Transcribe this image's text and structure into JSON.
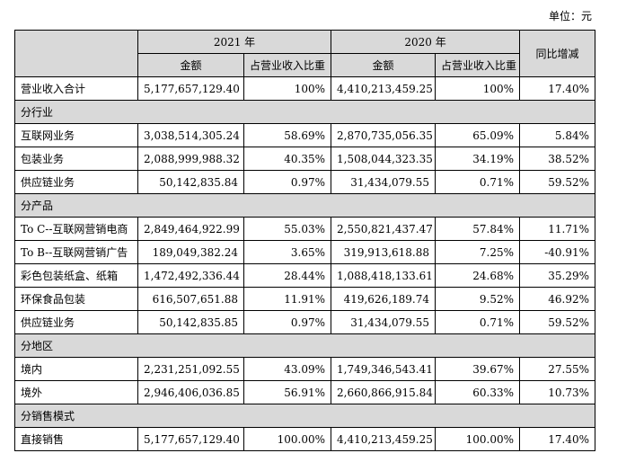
{
  "unit_label": "单位：元",
  "header": {
    "year2021": "2021 年",
    "year2020": "2020 年",
    "amount": "金额",
    "ratio": "占营业收入比重",
    "yoy": "同比增减"
  },
  "rows": [
    {
      "type": "data",
      "label": "营业收入合计",
      "a2021": "5,177,657,129.40",
      "r2021": "100%",
      "a2020": "4,410,213,459.25",
      "r2020": "100%",
      "yoy": "17.40%"
    },
    {
      "type": "section",
      "label": "分行业"
    },
    {
      "type": "data",
      "label": "互联网业务",
      "a2021": "3,038,514,305.24",
      "r2021": "58.69%",
      "a2020": "2,870,735,056.35",
      "r2020": "65.09%",
      "yoy": "5.84%"
    },
    {
      "type": "data",
      "label": "包装业务",
      "a2021": "2,088,999,988.32",
      "r2021": "40.35%",
      "a2020": "1,508,044,323.35",
      "r2020": "34.19%",
      "yoy": "38.52%"
    },
    {
      "type": "data",
      "label": "供应链业务",
      "a2021": "50,142,835.84",
      "r2021": "0.97%",
      "a2020": "31,434,079.55",
      "r2020": "0.71%",
      "yoy": "59.52%"
    },
    {
      "type": "section",
      "label": "分产品"
    },
    {
      "type": "data",
      "label": "To C--互联网营销电商",
      "a2021": "2,849,464,922.99",
      "r2021": "55.03%",
      "a2020": "2,550,821,437.47",
      "r2020": "57.84%",
      "yoy": "11.71%"
    },
    {
      "type": "data",
      "label": "To B--互联网营销广告",
      "a2021": "189,049,382.24",
      "r2021": "3.65%",
      "a2020": "319,913,618.88",
      "r2020": "7.25%",
      "yoy": "-40.91%"
    },
    {
      "type": "data",
      "label": "彩色包装纸盒、纸箱",
      "a2021": "1,472,492,336.44",
      "r2021": "28.44%",
      "a2020": "1,088,418,133.61",
      "r2020": "24.68%",
      "yoy": "35.29%"
    },
    {
      "type": "data",
      "label": "环保食品包装",
      "a2021": "616,507,651.88",
      "r2021": "11.91%",
      "a2020": "419,626,189.74",
      "r2020": "9.52%",
      "yoy": "46.92%"
    },
    {
      "type": "data",
      "label": "供应链业务",
      "a2021": "50,142,835.85",
      "r2021": "0.97%",
      "a2020": "31,434,079.55",
      "r2020": "0.71%",
      "yoy": "59.52%"
    },
    {
      "type": "section",
      "label": "分地区"
    },
    {
      "type": "data",
      "label": "境内",
      "a2021": "2,231,251,092.55",
      "r2021": "43.09%",
      "a2020": "1,749,346,543.41",
      "r2020": "39.67%",
      "yoy": "27.55%"
    },
    {
      "type": "data",
      "label": "境外",
      "a2021": "2,946,406,036.85",
      "r2021": "56.91%",
      "a2020": "2,660,866,915.84",
      "r2020": "60.33%",
      "yoy": "10.73%"
    },
    {
      "type": "section",
      "label": "分销售模式"
    },
    {
      "type": "data",
      "label": "直接销售",
      "a2021": "5,177,657,129.40",
      "r2021": "100.00%",
      "a2020": "4,410,213,459.25",
      "r2020": "100.00%",
      "yoy": "17.40%"
    }
  ]
}
